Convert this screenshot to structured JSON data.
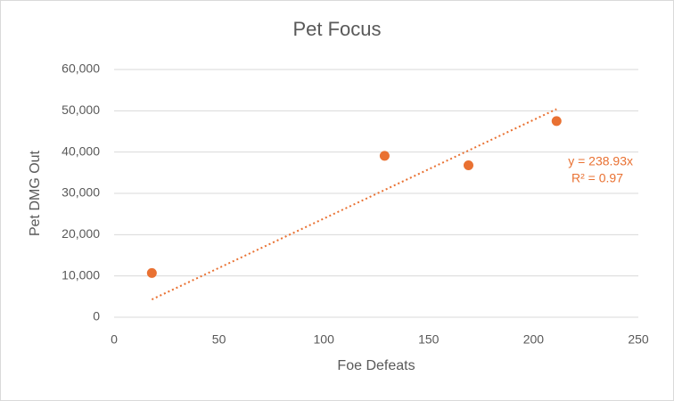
{
  "chart_data": {
    "type": "scatter",
    "title": "Pet Focus",
    "x_label": "Foe Defeats",
    "y_label": "Pet DMG Out",
    "series": [
      {
        "name": "Pet DMG Out",
        "color": "#e97132",
        "x": [
          18,
          129,
          169,
          211
        ],
        "values": [
          10700,
          39100,
          36800,
          47500
        ]
      }
    ],
    "trendline": {
      "slope": 238.93,
      "color": "#e97132",
      "equation": "y = 238.93x",
      "r2": "R² = 0.97"
    },
    "xlim": [
      0,
      250
    ],
    "xticks": [
      0,
      50,
      100,
      150,
      200,
      250
    ],
    "ylim": [
      0,
      60000
    ],
    "yticks": [
      0,
      {
        "value": 10000,
        "label": "10,000"
      },
      {
        "value": 20000,
        "label": "20,000"
      },
      {
        "value": 30000,
        "label": "30,000"
      },
      {
        "value": 40000,
        "label": "40,000"
      },
      {
        "value": 50000,
        "label": "50,000"
      },
      {
        "value": 60000,
        "label": "60,000"
      }
    ],
    "grid": true
  }
}
